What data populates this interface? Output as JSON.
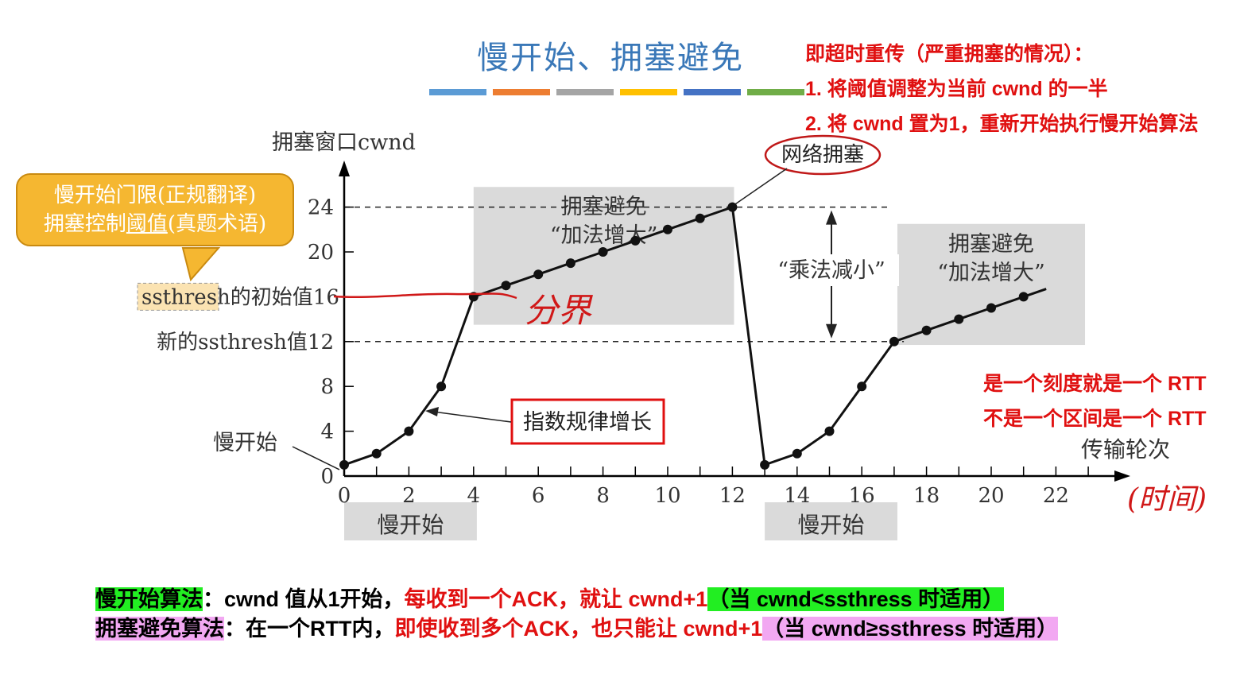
{
  "header": {
    "title": "慢开始、拥塞避免",
    "stripe_colors": [
      "#5b9bd5",
      "#ed7d31",
      "#a5a5a5",
      "#ffc000",
      "#4472c4",
      "#70ad47"
    ]
  },
  "timeout_note": {
    "line1": "即超时重传（严重拥塞的情况）：",
    "line2": "1. 将阈值调整为当前 cwnd 的一半",
    "line3": "2. 将 cwnd 置为1，重新开始执行慢开始算法"
  },
  "callout": {
    "line1": "慢开始门限(正规翻译)",
    "line2_prefix": "拥塞控制",
    "line2_underlined": "阈值",
    "line2_suffix": "(真题术语)"
  },
  "rtt_note": {
    "line1": "是一个刻度就是一个 RTT",
    "line2": "不是一个区间是一个 RTT"
  },
  "handwriting": {
    "boundary": "分界",
    "time": "(时间)"
  },
  "chart_data": {
    "type": "line",
    "ylabel": "拥塞窗口cwnd",
    "xlabel": "传输轮次",
    "x_ticks": [
      0,
      2,
      4,
      6,
      8,
      10,
      12,
      14,
      16,
      18,
      20,
      22
    ],
    "y_ticks": [
      0,
      4,
      8,
      12,
      16,
      20,
      24
    ],
    "xlim": [
      0,
      23
    ],
    "ylim": [
      0,
      26
    ],
    "grid": false,
    "series": [
      {
        "x": [
          0,
          1,
          2,
          3,
          4,
          5,
          6,
          7,
          8,
          9,
          10,
          11,
          12,
          13,
          14,
          15,
          16,
          17,
          18,
          19,
          20,
          21
        ],
        "y": [
          1,
          2,
          4,
          8,
          16,
          17,
          18,
          19,
          20,
          21,
          22,
          23,
          24,
          1,
          2,
          4,
          8,
          12,
          13,
          14,
          15,
          16
        ],
        "end": [
          21.7,
          16.7
        ]
      }
    ],
    "threshold_lines": [
      {
        "y": 24,
        "x_end": 16.8
      },
      {
        "y": 12,
        "x_end": 17.3
      }
    ],
    "shaded_regions": [
      {
        "label_line1": "拥塞避免",
        "label_line2": "“加法增大”",
        "x": [
          4,
          12.05
        ],
        "y": [
          13.5,
          25.8
        ]
      },
      {
        "label_line1": "拥塞避免",
        "label_line2": "“加法增大”",
        "x": [
          17.1,
          22.9
        ],
        "y": [
          11.7,
          22.5
        ]
      }
    ],
    "bottom_bands": [
      {
        "label": "慢开始",
        "x": [
          0,
          4.1
        ]
      },
      {
        "label": "慢开始",
        "x": [
          13,
          17.1
        ]
      }
    ],
    "annotations": {
      "ssthresh_word": "ssthresh",
      "ssthresh_initial_suffix": "的初始值16",
      "new_ssthresh": "新的ssthresh值12",
      "slow_start": "慢开始",
      "exponential": "指数规律增长",
      "congestion": "网络拥塞",
      "multiplicative": "“乘法减小”"
    }
  },
  "bottom_text": {
    "line1_label": "慢开始算法",
    "line1_text": "：cwnd 值从1开始，",
    "line1_red": "每收到一个ACK，就让 cwnd+1",
    "line1_cond": "（当 cwnd<ssthress 时适用）",
    "line2_label": "拥塞避免算法",
    "line2_text": "：在一个RTT内，",
    "line2_red": "即使收到多个ACK，也只能让 cwnd+1",
    "line2_cond": "（当 cwnd≥ssthress 时适用）"
  }
}
